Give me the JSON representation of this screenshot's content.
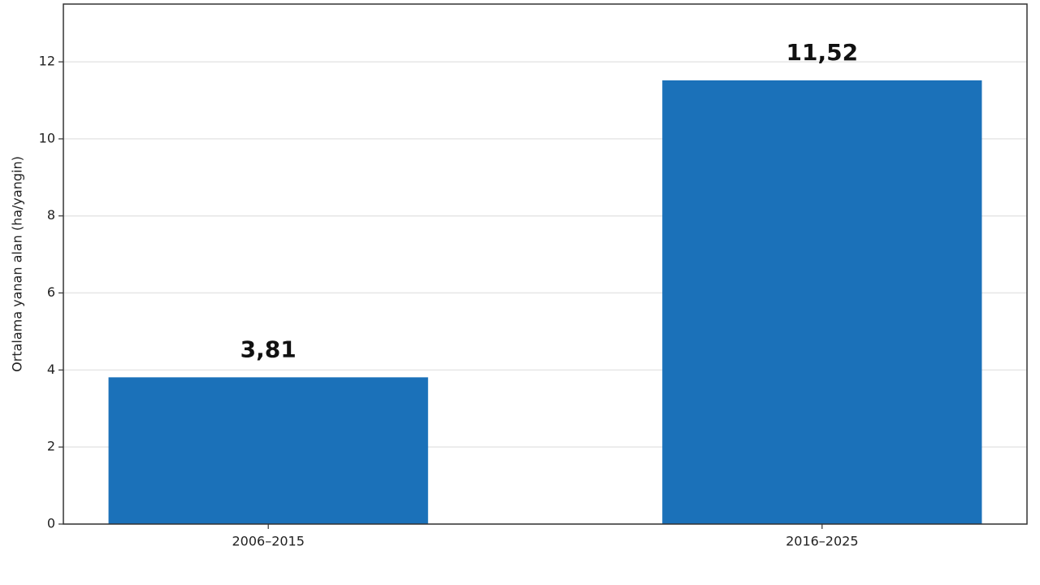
{
  "chart_data": {
    "type": "bar",
    "y_label": "Ortalama yanan alan (ha/yangin)",
    "categories": [
      "2006–2015",
      "2016–2025"
    ],
    "values": [
      3.81,
      11.52
    ],
    "value_labels": [
      "3,81",
      "11,52"
    ],
    "color": "#1b71b9",
    "ylim": [
      0,
      13.5
    ],
    "yticks": [
      0,
      2,
      4,
      6,
      8,
      10,
      12
    ],
    "grid": true
  }
}
